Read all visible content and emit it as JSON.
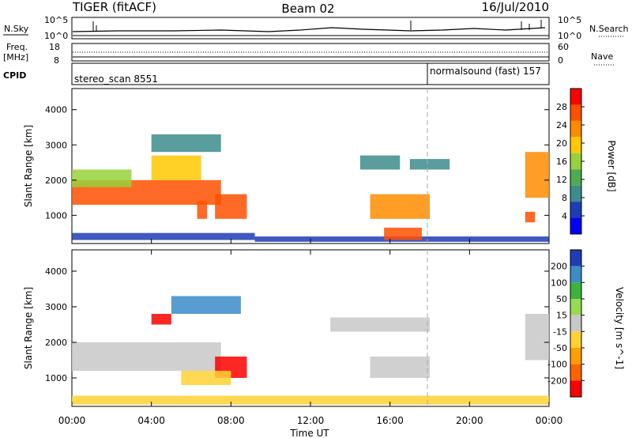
{
  "header": {
    "radar": "TIGER (fitACF)",
    "beam": "Beam 02",
    "date": "16/Jul/2010"
  },
  "top_panels": {
    "nsky_label": "N.Sky",
    "nsearch_label": "N.Search",
    "sky_ticks": [
      "10^5",
      "10^0"
    ],
    "freq_label_1": "Freq.",
    "freq_label_2": "[MHz]",
    "freq_ticks": [
      "18",
      "8"
    ],
    "nave_ticks": [
      "60",
      "0"
    ],
    "nave_label": "Nave",
    "cpid_label": "CPID",
    "cpid_1": "stereo_scan 8551",
    "cpid_2": "normalsound (fast) 157"
  },
  "colors": {
    "power": [
      "#0000ff",
      "#1e3cb4",
      "#3c8c8c",
      "#50aa50",
      "#96d23c",
      "#ffc800",
      "#ff8c00",
      "#ff5000",
      "#ff0000"
    ],
    "velocity": [
      "#1e3cb4",
      "#3c8cc8",
      "#3cb43c",
      "#96dc50",
      "#c8c8c8",
      "#ffd232",
      "#ffa000",
      "#ff6400",
      "#ff0000"
    ]
  },
  "chart_data": [
    {
      "type": "heatmap",
      "title": "",
      "xlabel": "Time UT",
      "ylabel": "Slant Range [km]",
      "x_ticks": [
        "00:00",
        "04:00",
        "08:00",
        "12:00",
        "16:00",
        "20:00",
        "00:00"
      ],
      "y_ticks": [
        1000,
        2000,
        3000,
        4000
      ],
      "xlim": [
        0,
        24
      ],
      "ylim": [
        200,
        4600
      ],
      "colorbar": {
        "label": "Power [dB]",
        "ticks": [
          4,
          8,
          12,
          16,
          20,
          24,
          28
        ],
        "range": [
          0,
          32
        ]
      },
      "regions": [
        {
          "t": [
            0,
            7.5
          ],
          "r": [
            1300,
            2000
          ],
          "value": 27
        },
        {
          "t": [
            0,
            3
          ],
          "r": [
            1800,
            2300
          ],
          "value": 16
        },
        {
          "t": [
            4,
            6.5
          ],
          "r": [
            2000,
            2700
          ],
          "value": 18
        },
        {
          "t": [
            6.3,
            6.8
          ],
          "r": [
            900,
            1400
          ],
          "value": 26
        },
        {
          "t": [
            7.2,
            8.8
          ],
          "r": [
            900,
            1600
          ],
          "value": 28
        },
        {
          "t": [
            0,
            9.2
          ],
          "r": [
            300,
            500
          ],
          "value": 6
        },
        {
          "t": [
            9.2,
            24
          ],
          "r": [
            250,
            400
          ],
          "value": 4
        },
        {
          "t": [
            15,
            18
          ],
          "r": [
            900,
            1600
          ],
          "value": 24
        },
        {
          "t": [
            15.7,
            17.6
          ],
          "r": [
            300,
            650
          ],
          "value": 28
        },
        {
          "t": [
            22.8,
            24
          ],
          "r": [
            1500,
            2800
          ],
          "value": 24
        },
        {
          "t": [
            22.8,
            23.3
          ],
          "r": [
            800,
            1100
          ],
          "value": 26
        },
        {
          "t": [
            4,
            7.5
          ],
          "r": [
            2800,
            3300
          ],
          "value": 8
        },
        {
          "t": [
            14.5,
            16.5
          ],
          "r": [
            2300,
            2700
          ],
          "value": 10
        },
        {
          "t": [
            17,
            19
          ],
          "r": [
            2300,
            2600
          ],
          "value": 8
        }
      ]
    },
    {
      "type": "heatmap",
      "title": "",
      "xlabel": "Time UT",
      "ylabel": "Slant Range [km]",
      "x_ticks": [
        "00:00",
        "04:00",
        "08:00",
        "12:00",
        "16:00",
        "20:00",
        "00:00"
      ],
      "y_ticks": [
        1000,
        2000,
        3000,
        4000
      ],
      "xlim": [
        0,
        24
      ],
      "ylim": [
        200,
        4600
      ],
      "colorbar": {
        "label": "Velocity [m s^-1]",
        "ticks": [
          200,
          100,
          50,
          15,
          -15,
          -50,
          -100,
          -200
        ],
        "range": [
          -250,
          250
        ]
      },
      "regions": [
        {
          "t": [
            0,
            7.5
          ],
          "r": [
            1200,
            2000
          ],
          "value": 0
        },
        {
          "t": [
            7.2,
            8.8
          ],
          "r": [
            1000,
            1600
          ],
          "value": -200
        },
        {
          "t": [
            5.5,
            8
          ],
          "r": [
            800,
            1200
          ],
          "value": -60
        },
        {
          "t": [
            4,
            5
          ],
          "r": [
            2500,
            2800
          ],
          "value": -200
        },
        {
          "t": [
            15,
            18
          ],
          "r": [
            1000,
            1600
          ],
          "value": 0
        },
        {
          "t": [
            0,
            24
          ],
          "r": [
            250,
            500
          ],
          "value": -40
        },
        {
          "t": [
            22.8,
            24
          ],
          "r": [
            1500,
            2800
          ],
          "value": 0
        },
        {
          "t": [
            5,
            8.5
          ],
          "r": [
            2800,
            3300
          ],
          "value": 150
        },
        {
          "t": [
            13,
            18
          ],
          "r": [
            2300,
            2700
          ],
          "value": 0
        }
      ]
    }
  ]
}
